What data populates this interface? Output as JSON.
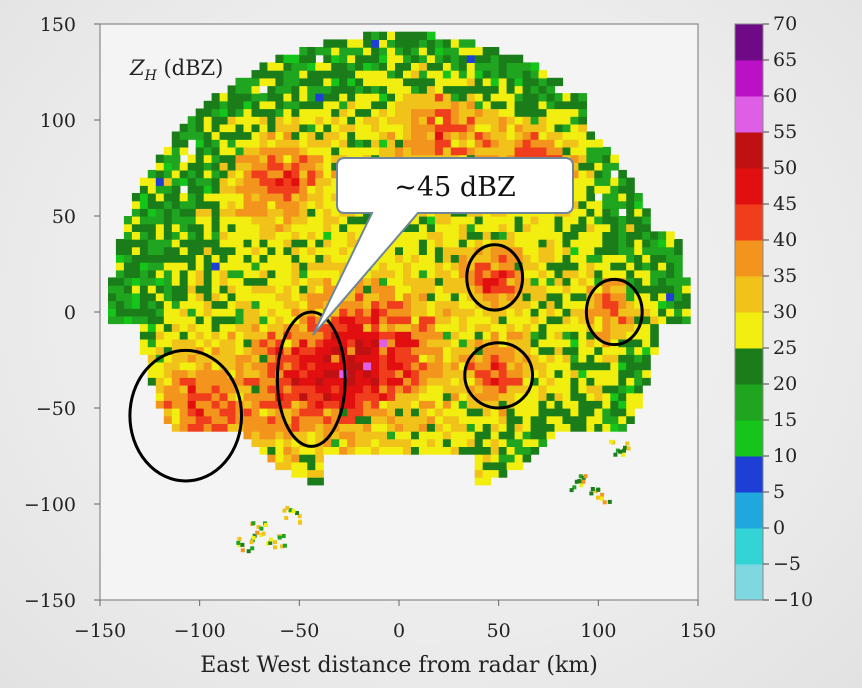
{
  "chart_data": {
    "type": "heatmap",
    "title": "Z_H (dBZ)",
    "title_main": "Z",
    "title_sub": "H",
    "title_unit": " (dBZ)",
    "xlabel": "East West distance from radar (km)",
    "ylabel": "",
    "xlim": [
      -150,
      150
    ],
    "ylim": [
      -150,
      150
    ],
    "x_ticks": [
      -150,
      -100,
      -50,
      0,
      50,
      100,
      150
    ],
    "y_ticks": [
      -150,
      -100,
      -50,
      0,
      50,
      100,
      150
    ],
    "x_tick_labels": [
      "−150",
      "−100",
      "−50",
      "0",
      "50",
      "100",
      "150"
    ],
    "y_tick_labels": [
      "−150",
      "−100",
      "−50",
      "0",
      "50",
      "100",
      "150"
    ],
    "colorbar": {
      "min": -10,
      "max": 70,
      "step": 5,
      "tick_labels": [
        "−10",
        "−5",
        "0",
        "5",
        "10",
        "15",
        "20",
        "25",
        "30",
        "35",
        "40",
        "45",
        "50",
        "55",
        "60",
        "65",
        "70"
      ],
      "colors": [
        "#7fd8e0",
        "#33d4d6",
        "#20a8dc",
        "#1e3fd6",
        "#16c51a",
        "#1fa51f",
        "#1a7d1a",
        "#f1ee10",
        "#f0c21a",
        "#f3951c",
        "#f03e1c",
        "#e10f10",
        "#bf1111",
        "#df5ee6",
        "#bb11c6",
        "#6e0a86"
      ]
    },
    "range_km": 150,
    "highlighted_regions": [
      {
        "cx": -107,
        "cy": -54,
        "rx": 28,
        "ry": 34
      },
      {
        "cx": -44,
        "cy": -35,
        "rx": 17,
        "ry": 35
      },
      {
        "cx": 48,
        "cy": 18,
        "rx": 14,
        "ry": 17
      },
      {
        "cx": 50,
        "cy": -33,
        "rx": 17,
        "ry": 17
      },
      {
        "cx": 108,
        "cy": 0,
        "rx": 14,
        "ry": 17
      }
    ],
    "callout": {
      "text": "~45 dBZ",
      "target_x": -44,
      "target_y": -12
    }
  }
}
